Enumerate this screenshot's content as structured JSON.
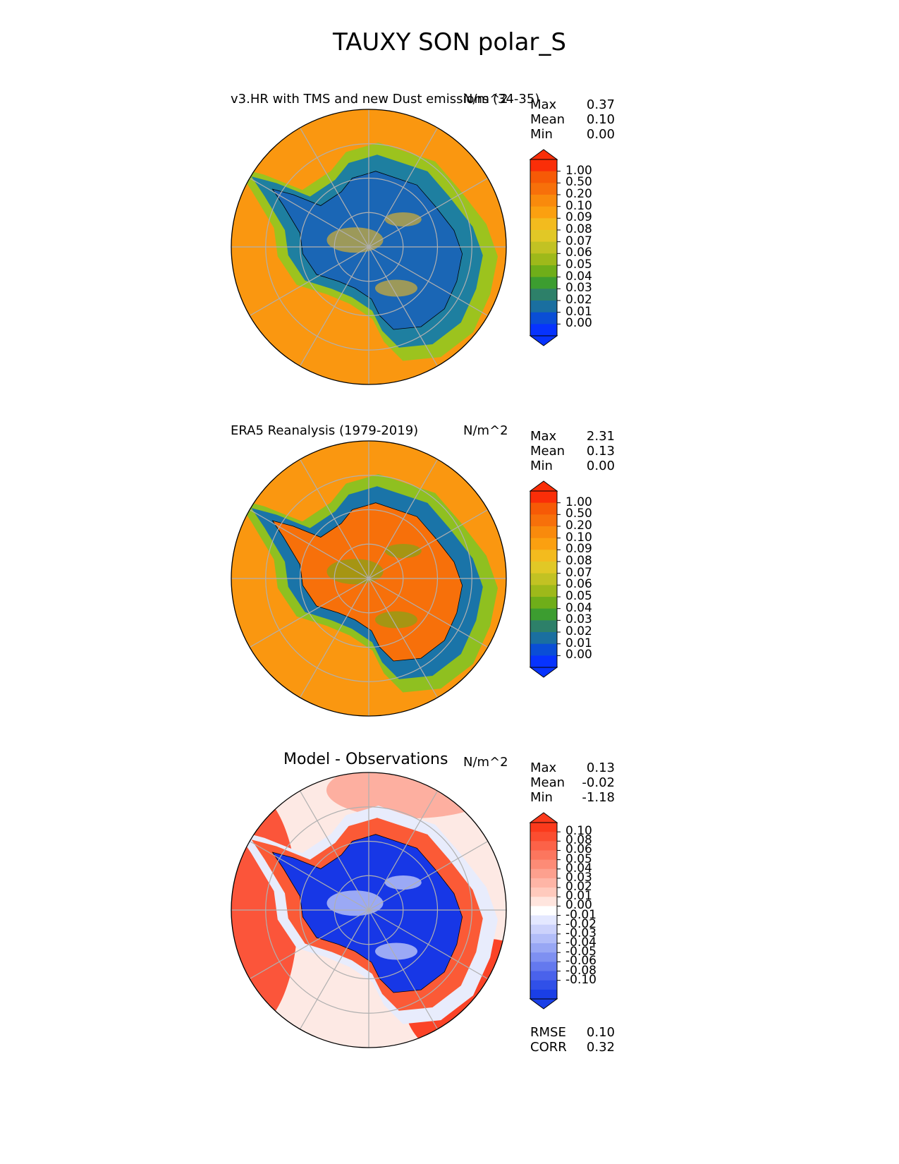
{
  "title": "TAUXY SON polar_S",
  "panels": [
    {
      "id": "model",
      "title": "v3.HR with TMS and new Dust emissions (34-35)",
      "units": "N/m^2",
      "stats": [
        {
          "label": "Max",
          "value": "0.37"
        },
        {
          "label": "Mean",
          "value": "0.10"
        },
        {
          "label": "Min",
          "value": "0.00"
        }
      ],
      "colorbar": {
        "labels": [
          "1.00",
          "0.50",
          "0.20",
          "0.10",
          "0.09",
          "0.08",
          "0.07",
          "0.06",
          "0.05",
          "0.04",
          "0.03",
          "0.02",
          "0.01",
          "0.00"
        ],
        "colors": [
          "#fa2e08",
          "#f65a06",
          "#f7700a",
          "#f98a0c",
          "#fba010",
          "#f3bb1e",
          "#e1c826",
          "#c2c223",
          "#9eb91a",
          "#6fae19",
          "#3c9d30",
          "#2d8069",
          "#1a6fa0",
          "#0a4ed6",
          "#0733fe"
        ],
        "over": "#fa2e08",
        "under": "#0733fe"
      },
      "map": {
        "ocean": "#fa9710",
        "ring": "#9cc31e",
        "inner": "#1e7fa0",
        "land": "#1a66b5",
        "highlights": "#f3bb1e"
      }
    },
    {
      "id": "obs",
      "title": "ERA5 Reanalysis (1979-2019)",
      "units": "N/m^2",
      "stats": [
        {
          "label": "Max",
          "value": "2.31"
        },
        {
          "label": "Mean",
          "value": "0.13"
        },
        {
          "label": "Min",
          "value": "0.00"
        }
      ],
      "colorbar": {
        "labels": [
          "1.00",
          "0.50",
          "0.20",
          "0.10",
          "0.09",
          "0.08",
          "0.07",
          "0.06",
          "0.05",
          "0.04",
          "0.03",
          "0.02",
          "0.01",
          "0.00"
        ],
        "colors": [
          "#fa2e08",
          "#f65a06",
          "#f7700a",
          "#f98a0c",
          "#fba010",
          "#f3bb1e",
          "#e1c826",
          "#c2c223",
          "#9eb91a",
          "#6fae19",
          "#3c9d30",
          "#2d8069",
          "#1a6fa0",
          "#0a4ed6",
          "#0733fe"
        ],
        "over": "#fa2e08",
        "under": "#0733fe"
      },
      "map": {
        "ocean": "#fa9710",
        "ring": "#8fc020",
        "inner": "#1a74a8",
        "land": "#f7700a",
        "highlights": "#6fae19"
      }
    },
    {
      "id": "diff",
      "title": "Model - Observations",
      "units": "N/m^2",
      "stats": [
        {
          "label": "Max",
          "value": "0.13"
        },
        {
          "label": "Mean",
          "value": "-0.02"
        },
        {
          "label": "Min",
          "value": "-1.18"
        }
      ],
      "colorbar": {
        "labels": [
          "0.10",
          "0.08",
          "0.06",
          "0.05",
          "0.04",
          "0.03",
          "0.02",
          "0.01",
          "0.00",
          "-0.01",
          "-0.02",
          "-0.03",
          "-0.04",
          "-0.05",
          "-0.06",
          "-0.08",
          "-0.10"
        ],
        "colors": [
          "#fb3a1c",
          "#fb4d30",
          "#fc6248",
          "#fc765e",
          "#fd8b76",
          "#fda08e",
          "#feb5a6",
          "#ffcabd",
          "#ffe5de",
          "#ffffff",
          "#e4e8ff",
          "#ccd2fb",
          "#b2bdf8",
          "#98a7f4",
          "#7e90f1",
          "#6479ee",
          "#4a62eb",
          "#3050e8",
          "#1a3fe6"
        ],
        "over": "#fb3a1c",
        "under": "#1a3fe6"
      },
      "map": {
        "ocean": "#fde9e4",
        "ring": "#e8ecfc",
        "inner": "#fb5a36",
        "land": "#1737e6",
        "highlights": "#f4f5ff"
      },
      "footer": [
        {
          "label": "RMSE",
          "value": "0.10"
        },
        {
          "label": "CORR",
          "value": "0.32"
        }
      ]
    }
  ]
}
